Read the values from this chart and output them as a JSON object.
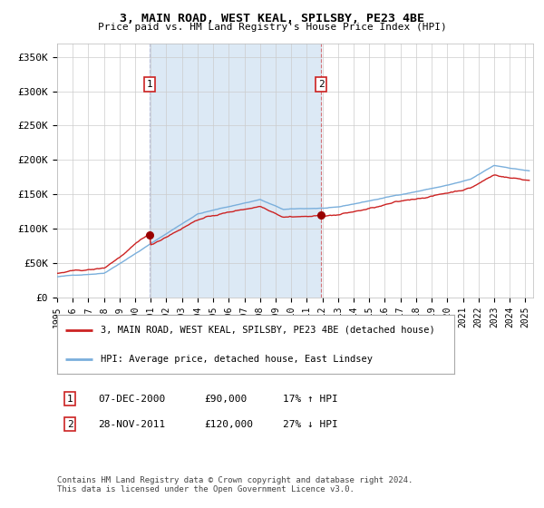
{
  "title": "3, MAIN ROAD, WEST KEAL, SPILSBY, PE23 4BE",
  "subtitle": "Price paid vs. HM Land Registry's House Price Index (HPI)",
  "xlim_start": 1995.0,
  "xlim_end": 2025.5,
  "ylim": [
    0,
    370000
  ],
  "yticks": [
    0,
    50000,
    100000,
    150000,
    200000,
    250000,
    300000,
    350000
  ],
  "ytick_labels": [
    "£0",
    "£50K",
    "£100K",
    "£150K",
    "£200K",
    "£250K",
    "£300K",
    "£350K"
  ],
  "sale1_date": 2000.93,
  "sale1_price": 90000,
  "sale2_date": 2011.91,
  "sale2_price": 120000,
  "line1_label": "3, MAIN ROAD, WEST KEAL, SPILSBY, PE23 4BE (detached house)",
  "line2_label": "HPI: Average price, detached house, East Lindsey",
  "legend_entry1_date": "07-DEC-2000",
  "legend_entry1_price": "£90,000",
  "legend_entry1_pct": "17% ↑ HPI",
  "legend_entry2_date": "28-NOV-2011",
  "legend_entry2_price": "£120,000",
  "legend_entry2_pct": "27% ↓ HPI",
  "footnote": "Contains HM Land Registry data © Crown copyright and database right 2024.\nThis data is licensed under the Open Government Licence v3.0.",
  "hpi_color": "#7aafdc",
  "price_color": "#cc2222",
  "shade_color": "#dce9f5",
  "bg_color": "#ffffff",
  "grid_color": "#cccccc",
  "marker_color": "#990000"
}
